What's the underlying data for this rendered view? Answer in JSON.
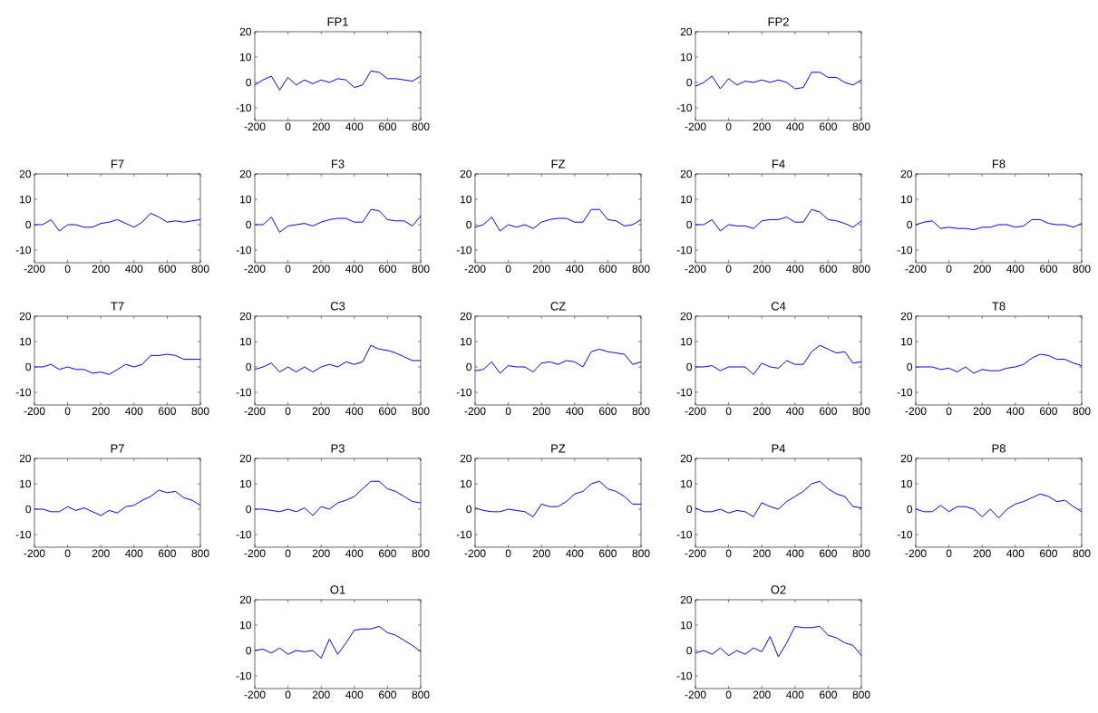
{
  "chart_data": [
    {
      "type": "line",
      "title": "FP1",
      "x": [
        -200,
        -150,
        -100,
        -50,
        0,
        50,
        100,
        150,
        200,
        250,
        300,
        350,
        400,
        450,
        500,
        550,
        600,
        650,
        700,
        750,
        800
      ],
      "values": [
        -1,
        1,
        2.5,
        -3,
        2,
        -1,
        1,
        -0.5,
        1,
        0,
        1.5,
        1,
        -2,
        -1,
        4.5,
        4,
        1.5,
        1.5,
        1,
        0.5,
        2.5
      ],
      "color": "#0000ff",
      "xlim": [
        -200,
        800
      ],
      "ylim": [
        -15,
        20
      ],
      "xticks": [
        -200,
        0,
        200,
        400,
        600,
        800
      ],
      "yticks": [
        -10,
        0,
        10,
        20
      ]
    },
    {
      "type": "line",
      "title": "FP2",
      "x": [
        -200,
        -150,
        -100,
        -50,
        0,
        50,
        100,
        150,
        200,
        250,
        300,
        350,
        400,
        450,
        500,
        550,
        600,
        650,
        700,
        750,
        800
      ],
      "values": [
        -1.5,
        0,
        2.5,
        -2.5,
        1.5,
        -1,
        0.5,
        0,
        1,
        0,
        1,
        0,
        -2.5,
        -2,
        4,
        4,
        2,
        2,
        0,
        -1,
        1
      ],
      "color": "#0000ff",
      "xlim": [
        -200,
        800
      ],
      "ylim": [
        -15,
        20
      ],
      "xticks": [
        -200,
        0,
        200,
        400,
        600,
        800
      ],
      "yticks": [
        -10,
        0,
        10,
        20
      ]
    },
    {
      "type": "line",
      "title": "F7",
      "x": [
        -200,
        -150,
        -100,
        -50,
        0,
        50,
        100,
        150,
        200,
        250,
        300,
        350,
        400,
        450,
        500,
        550,
        600,
        650,
        700,
        750,
        800
      ],
      "values": [
        0,
        0,
        2,
        -2.5,
        0,
        0,
        -1,
        -1,
        0.5,
        1,
        2,
        0.5,
        -1,
        1,
        4.5,
        3,
        1,
        1.5,
        1,
        1.5,
        2
      ],
      "color": "#0000ff",
      "xlim": [
        -200,
        800
      ],
      "ylim": [
        -15,
        20
      ],
      "xticks": [
        -200,
        0,
        200,
        400,
        600,
        800
      ],
      "yticks": [
        -10,
        0,
        10,
        20
      ]
    },
    {
      "type": "line",
      "title": "F3",
      "x": [
        -200,
        -150,
        -100,
        -50,
        0,
        50,
        100,
        150,
        200,
        250,
        300,
        350,
        400,
        450,
        500,
        550,
        600,
        650,
        700,
        750,
        800
      ],
      "values": [
        0,
        0,
        3,
        -3,
        -0.5,
        0,
        0.5,
        -0.5,
        1,
        2,
        2.5,
        2.5,
        1,
        1,
        6,
        5.5,
        2,
        1.5,
        1.5,
        -0.5,
        3.5
      ],
      "color": "#0000ff",
      "xlim": [
        -200,
        800
      ],
      "ylim": [
        -15,
        20
      ],
      "xticks": [
        -200,
        0,
        200,
        400,
        600,
        800
      ],
      "yticks": [
        -10,
        0,
        10,
        20
      ]
    },
    {
      "type": "line",
      "title": "FZ",
      "x": [
        -200,
        -150,
        -100,
        -50,
        0,
        50,
        100,
        150,
        200,
        250,
        300,
        350,
        400,
        450,
        500,
        550,
        600,
        650,
        700,
        750,
        800
      ],
      "values": [
        -1,
        0,
        3,
        -2.5,
        0,
        -1,
        0,
        -1.5,
        1,
        2,
        2.5,
        2.5,
        1,
        1,
        6,
        6,
        2,
        1.5,
        -0.5,
        0,
        2
      ],
      "color": "#0000ff",
      "xlim": [
        -200,
        800
      ],
      "ylim": [
        -15,
        20
      ],
      "xticks": [
        -200,
        0,
        200,
        400,
        600,
        800
      ],
      "yticks": [
        -10,
        0,
        10,
        20
      ]
    },
    {
      "type": "line",
      "title": "F4",
      "x": [
        -200,
        -150,
        -100,
        -50,
        0,
        50,
        100,
        150,
        200,
        250,
        300,
        350,
        400,
        450,
        500,
        550,
        600,
        650,
        700,
        750,
        800
      ],
      "values": [
        0,
        0,
        2,
        -2.5,
        0,
        -0.5,
        -0.5,
        -1.5,
        1.5,
        2,
        2,
        3,
        1,
        1,
        6,
        5,
        2,
        1.5,
        0.5,
        -1,
        1.5
      ],
      "color": "#0000ff",
      "xlim": [
        -200,
        800
      ],
      "ylim": [
        -15,
        20
      ],
      "xticks": [
        -200,
        0,
        200,
        400,
        600,
        800
      ],
      "yticks": [
        -10,
        0,
        10,
        20
      ]
    },
    {
      "type": "line",
      "title": "F8",
      "x": [
        -200,
        -150,
        -100,
        -50,
        0,
        50,
        100,
        150,
        200,
        250,
        300,
        350,
        400,
        450,
        500,
        550,
        600,
        650,
        700,
        750,
        800
      ],
      "values": [
        0,
        1,
        1.5,
        -1.5,
        -1,
        -1.5,
        -1.5,
        -2,
        -1,
        -1,
        0,
        0,
        -1,
        -0.5,
        2,
        2,
        0.5,
        0,
        0,
        -1,
        0.5
      ],
      "color": "#0000ff",
      "xlim": [
        -200,
        800
      ],
      "ylim": [
        -15,
        20
      ],
      "xticks": [
        -200,
        0,
        200,
        400,
        600,
        800
      ],
      "yticks": [
        -10,
        0,
        10,
        20
      ]
    },
    {
      "type": "line",
      "title": "T7",
      "x": [
        -200,
        -150,
        -100,
        -50,
        0,
        50,
        100,
        150,
        200,
        250,
        300,
        350,
        400,
        450,
        500,
        550,
        600,
        650,
        700,
        750,
        800
      ],
      "values": [
        0,
        0,
        1,
        -1,
        0,
        -1,
        -1,
        -2.5,
        -2,
        -3,
        -1,
        1,
        0,
        1,
        4.5,
        4.5,
        5,
        4.5,
        3,
        3,
        3
      ],
      "color": "#0000ff",
      "xlim": [
        -200,
        800
      ],
      "ylim": [
        -15,
        20
      ],
      "xticks": [
        -200,
        0,
        200,
        400,
        600,
        800
      ],
      "yticks": [
        -10,
        0,
        10,
        20
      ]
    },
    {
      "type": "line",
      "title": "C3",
      "x": [
        -200,
        -150,
        -100,
        -50,
        0,
        50,
        100,
        150,
        200,
        250,
        300,
        350,
        400,
        450,
        500,
        550,
        600,
        650,
        700,
        750,
        800
      ],
      "values": [
        -1,
        0,
        1.5,
        -2,
        0,
        -2,
        0,
        -2,
        0,
        1,
        0,
        2,
        1,
        2,
        8.5,
        7,
        6.5,
        5.5,
        4,
        2.5,
        2.5
      ],
      "color": "#0000ff",
      "xlim": [
        -200,
        800
      ],
      "ylim": [
        -15,
        20
      ],
      "xticks": [
        -200,
        0,
        200,
        400,
        600,
        800
      ],
      "yticks": [
        -10,
        0,
        10,
        20
      ]
    },
    {
      "type": "line",
      "title": "CZ",
      "x": [
        -200,
        -150,
        -100,
        -50,
        0,
        50,
        100,
        150,
        200,
        250,
        300,
        350,
        400,
        450,
        500,
        550,
        600,
        650,
        700,
        750,
        800
      ],
      "values": [
        -1.5,
        -1,
        2,
        -2.5,
        0.5,
        0,
        0,
        -2,
        1.5,
        2,
        1,
        2.5,
        2,
        0,
        6,
        7,
        6,
        5.5,
        5,
        1,
        2
      ],
      "color": "#0000ff",
      "xlim": [
        -200,
        800
      ],
      "ylim": [
        -15,
        20
      ],
      "xticks": [
        -200,
        0,
        200,
        400,
        600,
        800
      ],
      "yticks": [
        -10,
        0,
        10,
        20
      ]
    },
    {
      "type": "line",
      "title": "C4",
      "x": [
        -200,
        -150,
        -100,
        -50,
        0,
        50,
        100,
        150,
        200,
        250,
        300,
        350,
        400,
        450,
        500,
        550,
        600,
        650,
        700,
        750,
        800
      ],
      "values": [
        0,
        0,
        0.5,
        -1.5,
        0,
        0,
        0,
        -3,
        1.5,
        0,
        -0.5,
        2.5,
        1,
        1,
        6,
        8.5,
        7,
        5.5,
        6,
        1.5,
        2
      ],
      "color": "#0000ff",
      "xlim": [
        -200,
        800
      ],
      "ylim": [
        -15,
        20
      ],
      "xticks": [
        -200,
        0,
        200,
        400,
        600,
        800
      ],
      "yticks": [
        -10,
        0,
        10,
        20
      ]
    },
    {
      "type": "line",
      "title": "T8",
      "x": [
        -200,
        -150,
        -100,
        -50,
        0,
        50,
        100,
        150,
        200,
        250,
        300,
        350,
        400,
        450,
        500,
        550,
        600,
        650,
        700,
        750,
        800
      ],
      "values": [
        0,
        0,
        0,
        -1,
        -0.5,
        -2,
        0,
        -2.5,
        -1,
        -1.5,
        -1.5,
        -0.5,
        0,
        1,
        3.5,
        5,
        4.5,
        3,
        3,
        1.5,
        0.5
      ],
      "color": "#0000ff",
      "xlim": [
        -200,
        800
      ],
      "ylim": [
        -15,
        20
      ],
      "xticks": [
        -200,
        0,
        200,
        400,
        600,
        800
      ],
      "yticks": [
        -10,
        0,
        10,
        20
      ]
    },
    {
      "type": "line",
      "title": "P7",
      "x": [
        -200,
        -150,
        -100,
        -50,
        0,
        50,
        100,
        150,
        200,
        250,
        300,
        350,
        400,
        450,
        500,
        550,
        600,
        650,
        700,
        750,
        800
      ],
      "values": [
        0,
        0,
        -1,
        -1,
        1,
        -0.5,
        0.5,
        -1,
        -2.5,
        -0.5,
        -1.5,
        1,
        1.5,
        3.5,
        5,
        7.5,
        6.5,
        7,
        4.5,
        3.5,
        1.5
      ],
      "color": "#0000ff",
      "xlim": [
        -200,
        800
      ],
      "ylim": [
        -15,
        20
      ],
      "xticks": [
        -200,
        0,
        200,
        400,
        600,
        800
      ],
      "yticks": [
        -10,
        0,
        10,
        20
      ]
    },
    {
      "type": "line",
      "title": "P3",
      "x": [
        -200,
        -150,
        -100,
        -50,
        0,
        50,
        100,
        150,
        200,
        250,
        300,
        350,
        400,
        450,
        500,
        550,
        600,
        650,
        700,
        750,
        800
      ],
      "values": [
        0,
        0,
        -0.5,
        -1,
        0,
        -1,
        0.5,
        -2.5,
        1,
        0,
        2.5,
        3.5,
        5,
        8,
        11,
        11,
        8,
        7,
        5,
        3,
        2.5
      ],
      "color": "#0000ff",
      "xlim": [
        -200,
        800
      ],
      "ylim": [
        -15,
        20
      ],
      "xticks": [
        -200,
        0,
        200,
        400,
        600,
        800
      ],
      "yticks": [
        -10,
        0,
        10,
        20
      ]
    },
    {
      "type": "line",
      "title": "PZ",
      "x": [
        -200,
        -150,
        -100,
        -50,
        0,
        50,
        100,
        150,
        200,
        250,
        300,
        350,
        400,
        450,
        500,
        550,
        600,
        650,
        700,
        750,
        800
      ],
      "values": [
        0.5,
        -0.5,
        -1,
        -1,
        0,
        -0.5,
        -1,
        -3,
        2,
        1,
        1,
        3,
        6,
        7,
        10,
        11,
        8,
        7,
        5,
        2,
        2
      ],
      "color": "#0000ff",
      "xlim": [
        -200,
        800
      ],
      "ylim": [
        -15,
        20
      ],
      "xticks": [
        -200,
        0,
        200,
        400,
        600,
        800
      ],
      "yticks": [
        -10,
        0,
        10,
        20
      ]
    },
    {
      "type": "line",
      "title": "P4",
      "x": [
        -200,
        -150,
        -100,
        -50,
        0,
        50,
        100,
        150,
        200,
        250,
        300,
        350,
        400,
        450,
        500,
        550,
        600,
        650,
        700,
        750,
        800
      ],
      "values": [
        0.5,
        -1,
        -1,
        0,
        -1.5,
        -0.5,
        -1,
        -3,
        2.5,
        1,
        0,
        3,
        5,
        7,
        10,
        11,
        8,
        6,
        5,
        1,
        0.5
      ],
      "color": "#0000ff",
      "xlim": [
        -200,
        800
      ],
      "ylim": [
        -15,
        20
      ],
      "xticks": [
        -200,
        0,
        200,
        400,
        600,
        800
      ],
      "yticks": [
        -10,
        0,
        10,
        20
      ]
    },
    {
      "type": "line",
      "title": "P8",
      "x": [
        -200,
        -150,
        -100,
        -50,
        0,
        50,
        100,
        150,
        200,
        250,
        300,
        350,
        400,
        450,
        500,
        550,
        600,
        650,
        700,
        750,
        800
      ],
      "values": [
        0,
        -1,
        -1,
        1.5,
        -1,
        1,
        1,
        0,
        -3,
        0,
        -3.5,
        0,
        2,
        3,
        4.5,
        6,
        5,
        3,
        3.5,
        1,
        -1
      ],
      "color": "#0000ff",
      "xlim": [
        -200,
        800
      ],
      "ylim": [
        -15,
        20
      ],
      "xticks": [
        -200,
        0,
        200,
        400,
        600,
        800
      ],
      "yticks": [
        -10,
        0,
        10,
        20
      ]
    },
    {
      "type": "line",
      "title": "O1",
      "x": [
        -200,
        -150,
        -100,
        -50,
        0,
        50,
        100,
        150,
        200,
        250,
        300,
        350,
        400,
        450,
        500,
        550,
        600,
        650,
        700,
        750,
        800
      ],
      "values": [
        0,
        0.5,
        -1,
        1,
        -1.5,
        0,
        -0.5,
        0,
        -3,
        4.5,
        -1.5,
        3,
        8,
        8.5,
        8.5,
        9.5,
        7,
        6,
        4,
        2,
        -0.5
      ],
      "color": "#0000ff",
      "xlim": [
        -200,
        800
      ],
      "ylim": [
        -15,
        20
      ],
      "xticks": [
        -200,
        0,
        200,
        400,
        600,
        800
      ],
      "yticks": [
        -10,
        0,
        10,
        20
      ]
    },
    {
      "type": "line",
      "title": "O2",
      "x": [
        -200,
        -150,
        -100,
        -50,
        0,
        50,
        100,
        150,
        200,
        250,
        300,
        350,
        400,
        450,
        500,
        550,
        600,
        650,
        700,
        750,
        800
      ],
      "values": [
        -1,
        0,
        -1.5,
        1,
        -2,
        0,
        -1.5,
        1,
        -0.5,
        5.5,
        -2.5,
        3,
        9.5,
        9,
        9,
        9.5,
        6,
        5,
        3,
        2,
        -2
      ],
      "color": "#0000ff",
      "xlim": [
        -200,
        800
      ],
      "ylim": [
        -15,
        20
      ],
      "xticks": [
        -200,
        0,
        200,
        400,
        600,
        800
      ],
      "yticks": [
        -10,
        0,
        10,
        20
      ]
    }
  ]
}
